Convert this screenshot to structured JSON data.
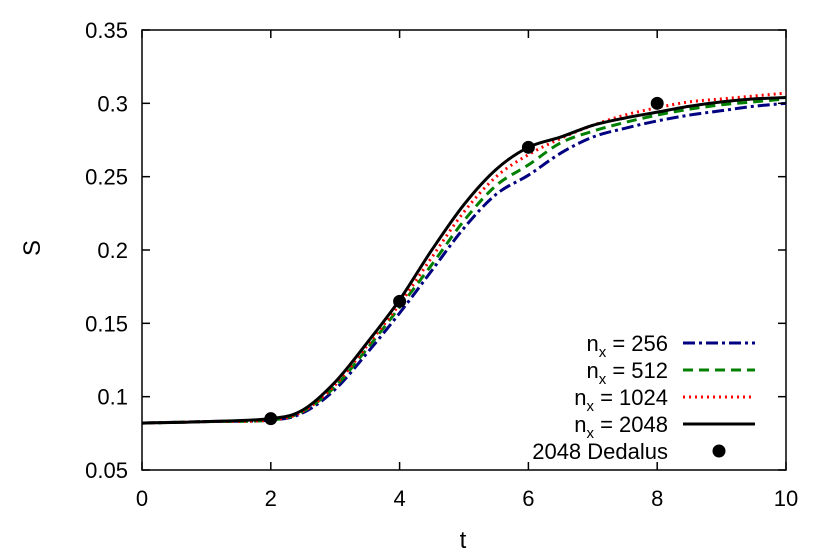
{
  "chart_data": {
    "type": "line",
    "xlabel": "t",
    "ylabel": "S",
    "xlim": [
      0,
      10
    ],
    "ylim": [
      0.05,
      0.35
    ],
    "x_ticks": [
      0,
      2,
      4,
      6,
      8,
      10
    ],
    "x_tick_labels": [
      "0",
      "2",
      "4",
      "6",
      "8",
      "10"
    ],
    "y_ticks": [
      0.05,
      0.1,
      0.15,
      0.2,
      0.25,
      0.3,
      0.35
    ],
    "y_tick_labels": [
      "0.05",
      "0.1",
      "0.15",
      "0.2",
      "0.25",
      "0.3",
      "0.35"
    ],
    "grid": false,
    "legend_position": "bottom-right",
    "series": [
      {
        "legend_main": "n",
        "legend_sub": "x",
        "legend_rest": " = 256",
        "style": "dash-dot",
        "color": "#000080",
        "x": [
          0,
          1,
          2,
          2.5,
          3,
          3.5,
          4,
          4.5,
          5,
          5.5,
          6,
          6.5,
          7,
          7.5,
          8,
          8.5,
          9,
          9.5,
          10
        ],
        "y": [
          0.082,
          0.083,
          0.084,
          0.089,
          0.105,
          0.13,
          0.157,
          0.186,
          0.215,
          0.238,
          0.251,
          0.266,
          0.277,
          0.283,
          0.288,
          0.292,
          0.295,
          0.298,
          0.3
        ]
      },
      {
        "legend_main": "n",
        "legend_sub": "x",
        "legend_rest": " = 512",
        "style": "dashed",
        "color": "#008000",
        "x": [
          0,
          1,
          2,
          2.5,
          3,
          3.5,
          4,
          4.5,
          5,
          5.5,
          6,
          6.5,
          7,
          7.5,
          8,
          8.5,
          9,
          9.5,
          10
        ],
        "y": [
          0.082,
          0.083,
          0.084,
          0.09,
          0.107,
          0.133,
          0.161,
          0.19,
          0.22,
          0.244,
          0.258,
          0.273,
          0.281,
          0.287,
          0.292,
          0.296,
          0.299,
          0.301,
          0.303
        ]
      },
      {
        "legend_main": "n",
        "legend_sub": "x",
        "legend_rest": " = 1024",
        "style": "dotted",
        "color": "#ff0000",
        "x": [
          0,
          1,
          2,
          2.5,
          3,
          3.5,
          4,
          4.5,
          5,
          5.5,
          6,
          6.5,
          7,
          7.5,
          8,
          8.5,
          9,
          9.5,
          10
        ],
        "y": [
          0.082,
          0.083,
          0.084,
          0.09,
          0.108,
          0.135,
          0.163,
          0.195,
          0.226,
          0.25,
          0.265,
          0.276,
          0.285,
          0.292,
          0.297,
          0.301,
          0.303,
          0.305,
          0.307
        ]
      },
      {
        "legend_main": "n",
        "legend_sub": "x",
        "legend_rest": " = 2048",
        "style": "solid",
        "color": "#000000",
        "x": [
          0,
          1,
          2,
          2.5,
          3,
          3.5,
          4,
          4.5,
          5,
          5.5,
          6,
          6.5,
          7,
          7.5,
          8,
          8.5,
          9,
          9.5,
          10
        ],
        "y": [
          0.082,
          0.083,
          0.085,
          0.091,
          0.11,
          0.137,
          0.166,
          0.2,
          0.231,
          0.255,
          0.27,
          0.277,
          0.285,
          0.29,
          0.294,
          0.298,
          0.301,
          0.303,
          0.304
        ]
      },
      {
        "legend_main": "2048 Dedalus",
        "legend_sub": "",
        "legend_rest": "",
        "style": "points",
        "color": "#000000",
        "x": [
          2,
          4,
          6,
          8
        ],
        "y": [
          0.085,
          0.165,
          0.27,
          0.3
        ]
      }
    ]
  }
}
